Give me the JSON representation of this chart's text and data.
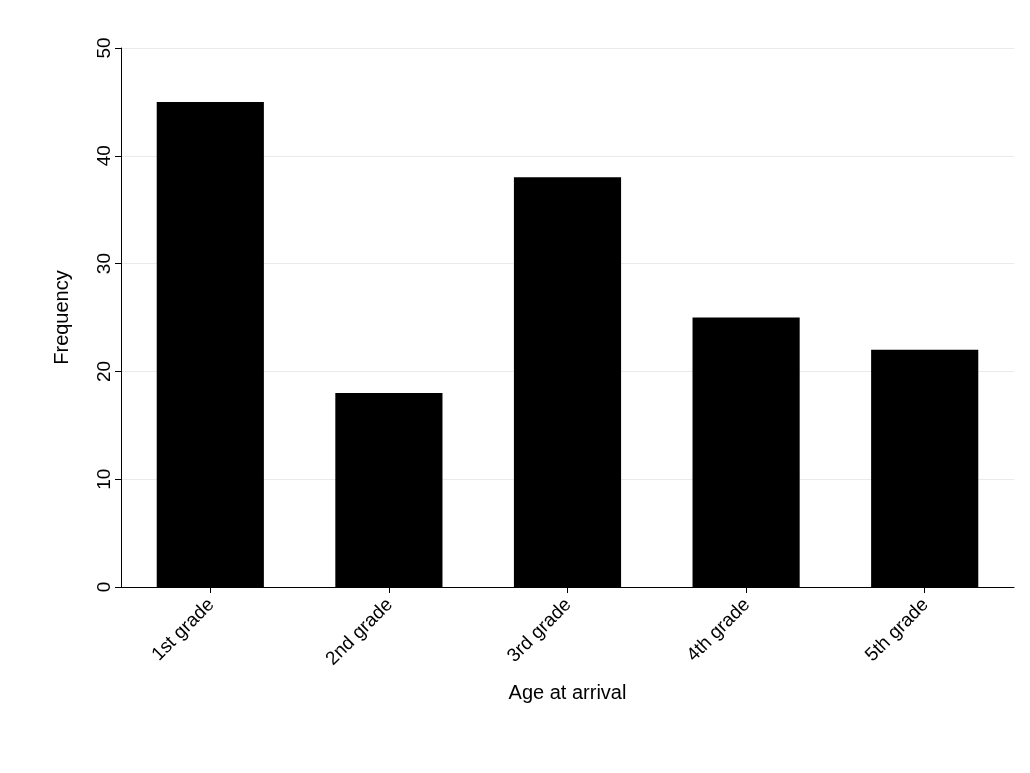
{
  "chart_data": {
    "type": "bar",
    "xlabel": "Age at arrival",
    "ylabel": "Frequency",
    "categories": [
      "1st grade",
      "2nd grade",
      "3rd grade",
      "4th grade",
      "5th grade"
    ],
    "values": [
      45,
      18,
      38,
      25,
      22
    ],
    "color": "#000000",
    "ylim": [
      0,
      50
    ],
    "yticks": [
      0,
      10,
      20,
      30,
      40,
      50
    ],
    "grid": "y"
  }
}
